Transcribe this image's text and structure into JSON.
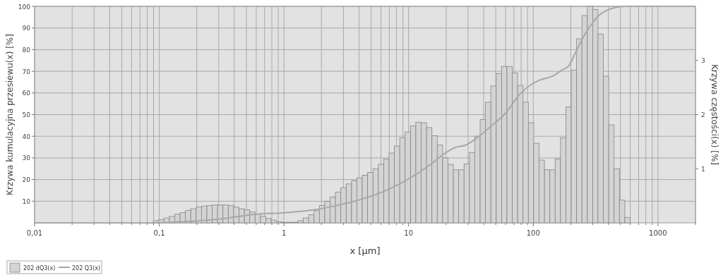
{
  "chart_data": {
    "type": "histogram",
    "xlabel": "x [µm]",
    "ylabel": "Krzywa kumulacyjna przesiewu(x) [%]",
    "y2label": "Krzywa częstości(x) [%]",
    "log": "x",
    "grid": true,
    "legend": "bottom left",
    "xlim": [
      0.01,
      2000
    ],
    "xticks": [
      {
        "value": 0.01,
        "label": "0,01"
      },
      {
        "value": 0.02,
        "label": null
      },
      {
        "value": 0.03,
        "label": null
      },
      {
        "value": 0.04,
        "label": null
      },
      {
        "value": 0.05,
        "label": null
      },
      {
        "value": 0.06,
        "label": null
      },
      {
        "value": 0.07,
        "label": null
      },
      {
        "value": 0.08,
        "label": null
      },
      {
        "value": 0.09,
        "label": null
      },
      {
        "value": 0.1,
        "label": "0,1"
      },
      {
        "value": 0.2,
        "label": null
      },
      {
        "value": 0.3,
        "label": null
      },
      {
        "value": 0.4,
        "label": null
      },
      {
        "value": 0.5,
        "label": null
      },
      {
        "value": 0.6,
        "label": null
      },
      {
        "value": 0.7,
        "label": null
      },
      {
        "value": 0.8,
        "label": null
      },
      {
        "value": 0.9,
        "label": null
      },
      1,
      {
        "value": 2,
        "label": null
      },
      {
        "value": 3,
        "label": null
      },
      {
        "value": 4,
        "label": null
      },
      {
        "value": 5,
        "label": null
      },
      {
        "value": 6,
        "label": null
      },
      {
        "value": 7,
        "label": null
      },
      {
        "value": 8,
        "label": null
      },
      {
        "value": 9,
        "label": null
      },
      10,
      {
        "value": 20,
        "label": null
      },
      {
        "value": 30,
        "label": null
      },
      {
        "value": 40,
        "label": null
      },
      {
        "value": 50,
        "label": null
      },
      {
        "value": 60,
        "label": null
      },
      {
        "value": 70,
        "label": null
      },
      {
        "value": 80,
        "label": null
      },
      {
        "value": 90,
        "label": null
      },
      100,
      {
        "value": 200,
        "label": null
      },
      {
        "value": 300,
        "label": null
      },
      {
        "value": 400,
        "label": null
      },
      {
        "value": 500,
        "label": null
      },
      {
        "value": 600,
        "label": null
      },
      {
        "value": 700,
        "label": null
      },
      {
        "value": 800,
        "label": null
      },
      {
        "value": 900,
        "label": null
      },
      1000,
      {
        "value": 2000,
        "label": null
      }
    ],
    "ylim": [
      0,
      100
    ],
    "yticks": [
      10,
      20,
      30,
      40,
      50,
      60,
      70,
      80,
      90,
      100
    ],
    "y2lim": [
      0,
      4
    ],
    "y2ticks": [
      1,
      2,
      3
    ],
    "bins": [
      0.0895,
      0.0989,
      0.1091,
      0.1205,
      0.133,
      0.1469,
      0.1622,
      0.179,
      0.1976,
      0.2182,
      0.2409,
      0.266,
      0.2936,
      0.3242,
      0.3579,
      0.3951,
      0.4362,
      0.4816,
      0.5317,
      0.587,
      0.6481,
      0.7155,
      0.7899,
      0.872,
      0.9627,
      1.063,
      1.174,
      1.296,
      1.43,
      1.579,
      1.743,
      1.925,
      2.125,
      2.346,
      2.59,
      2.86,
      3.157,
      3.485,
      3.848,
      4.248,
      4.69,
      5.178,
      5.716,
      6.312,
      6.968,
      7.693,
      8.493,
      9.378,
      10.35,
      11.43,
      12.62,
      13.93,
      15.38,
      16.98,
      18.75,
      20.7,
      22.85,
      25.23,
      27.85,
      30.75,
      33.95,
      37.48,
      41.38,
      45.68,
      50.43,
      55.68,
      61.48,
      67.87,
      74.93,
      82.73,
      91.34,
      100.8,
      111.3,
      122.9,
      135.7,
      149.8,
      165.4,
      182.6,
      201.6,
      222.6,
      245.7,
      271.3,
      299.5,
      330.6,
      365,
      403,
      444.9,
      491.2,
      542.3,
      598.7
    ],
    "series": [
      {
        "name": "202 dQ3(x)",
        "axis": "y2",
        "color": "#d4d4d4",
        "values": [
          0.04,
          0.06,
          0.09,
          0.12,
          0.16,
          0.19,
          0.23,
          0.26,
          0.29,
          0.31,
          0.32,
          0.33,
          0.33,
          0.33,
          0.32,
          0.29,
          0.26,
          0.24,
          0.2,
          0.16,
          0.12,
          0.08,
          0.05,
          0.02,
          0.01,
          0.01,
          0.01,
          0.04,
          0.09,
          0.15,
          0.23,
          0.32,
          0.4,
          0.48,
          0.57,
          0.65,
          0.72,
          0.78,
          0.83,
          0.88,
          0.93,
          1.0,
          1.08,
          1.18,
          1.29,
          1.42,
          1.57,
          1.68,
          1.79,
          1.86,
          1.85,
          1.76,
          1.61,
          1.44,
          1.2,
          1.08,
          0.98,
          0.98,
          1.09,
          1.3,
          1.6,
          1.91,
          2.23,
          2.53,
          2.76,
          2.89,
          2.89,
          2.77,
          2.54,
          2.23,
          1.85,
          1.47,
          1.16,
          0.98,
          0.98,
          1.18,
          1.57,
          2.14,
          2.82,
          3.4,
          3.83,
          4.0,
          3.94,
          3.49,
          2.71,
          1.81,
          1.0,
          0.42,
          0.1
        ]
      },
      {
        "type": "line",
        "name": "202 Q3(x)",
        "color": "#a8a8a8",
        "x": [
          0.01,
          0.09,
          0.13,
          0.2,
          0.3,
          0.4,
          0.62,
          0.95,
          1.13,
          1.74,
          2.68,
          4.13,
          6.36,
          9.8,
          15.1,
          18.8,
          23.3,
          28.9,
          35.8,
          44.5,
          60.4,
          78.5,
          96.9,
          110,
          143,
          169,
          193,
          220,
          260,
          297,
          338,
          406,
          480,
          544,
          2000
        ],
        "values": [
          0,
          0,
          0.3,
          0.9,
          1.7,
          2.7,
          4.1,
          4.6,
          4.9,
          6,
          8.1,
          10.8,
          14.6,
          20,
          27.1,
          31.4,
          34.7,
          36,
          39.5,
          44,
          50.9,
          59.6,
          64,
          65.7,
          67.8,
          70.5,
          72.6,
          79,
          87.2,
          92.1,
          95.9,
          98.6,
          99.7,
          100,
          100
        ]
      }
    ]
  }
}
